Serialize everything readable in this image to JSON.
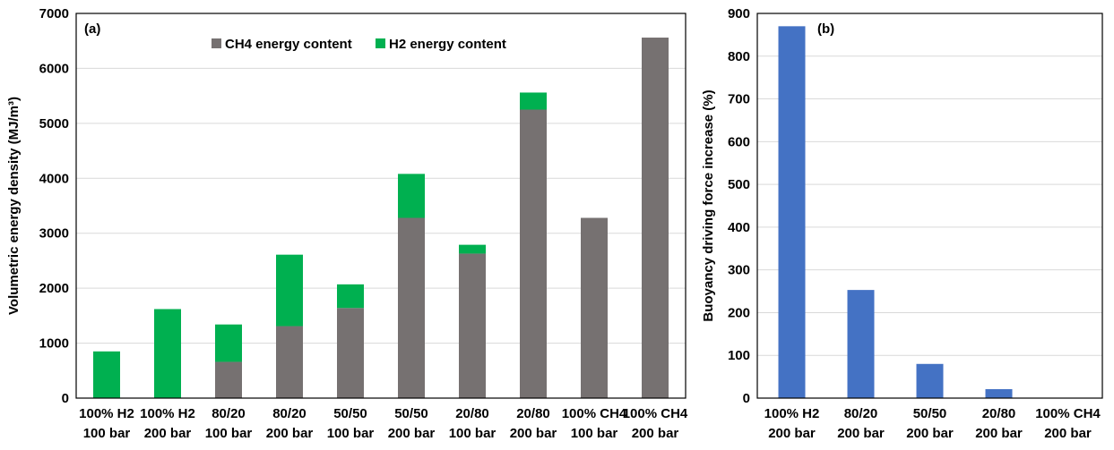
{
  "chart_data": [
    {
      "type": "bar",
      "stacked": true,
      "panel_label": "(a)",
      "ylabel": "Volumetric energy density (MJ/m³)",
      "ylim": [
        0,
        7000
      ],
      "yticks": [
        0,
        1000,
        2000,
        3000,
        4000,
        5000,
        6000,
        7000
      ],
      "grid": true,
      "legend_position": "top-center",
      "categories": [
        [
          "100% H2",
          "100 bar"
        ],
        [
          "100% H2",
          "200 bar"
        ],
        [
          "80/20",
          "100 bar"
        ],
        [
          "80/20",
          "200 bar"
        ],
        [
          "50/50",
          "100 bar"
        ],
        [
          "50/50",
          "200 bar"
        ],
        [
          "20/80",
          "100 bar"
        ],
        [
          "20/80",
          "200 bar"
        ],
        [
          "100% CH4",
          "100 bar"
        ],
        [
          "100% CH4",
          "200 bar"
        ]
      ],
      "series": [
        {
          "name": "CH4 energy content",
          "color": "#767171",
          "values": [
            0,
            0,
            660,
            1310,
            1640,
            3280,
            2630,
            5250,
            3280,
            6560
          ]
        },
        {
          "name": "H2 energy content",
          "color": "#00b050",
          "values": [
            850,
            1620,
            680,
            1300,
            430,
            800,
            160,
            310,
            0,
            0
          ]
        }
      ]
    },
    {
      "type": "bar",
      "panel_label": "(b)",
      "ylabel": "Buoyancy driving force increase (%)",
      "ylim": [
        0,
        900
      ],
      "yticks": [
        0,
        100,
        200,
        300,
        400,
        500,
        600,
        700,
        800,
        900
      ],
      "grid": true,
      "categories": [
        [
          "100% H2",
          "200 bar"
        ],
        [
          "80/20",
          "200 bar"
        ],
        [
          "50/50",
          "200 bar"
        ],
        [
          "20/80",
          "200 bar"
        ],
        [
          "100% CH4",
          "200 bar"
        ]
      ],
      "series": [
        {
          "color": "#4472c4",
          "values": [
            870,
            253,
            80,
            21,
            0
          ]
        }
      ]
    }
  ]
}
